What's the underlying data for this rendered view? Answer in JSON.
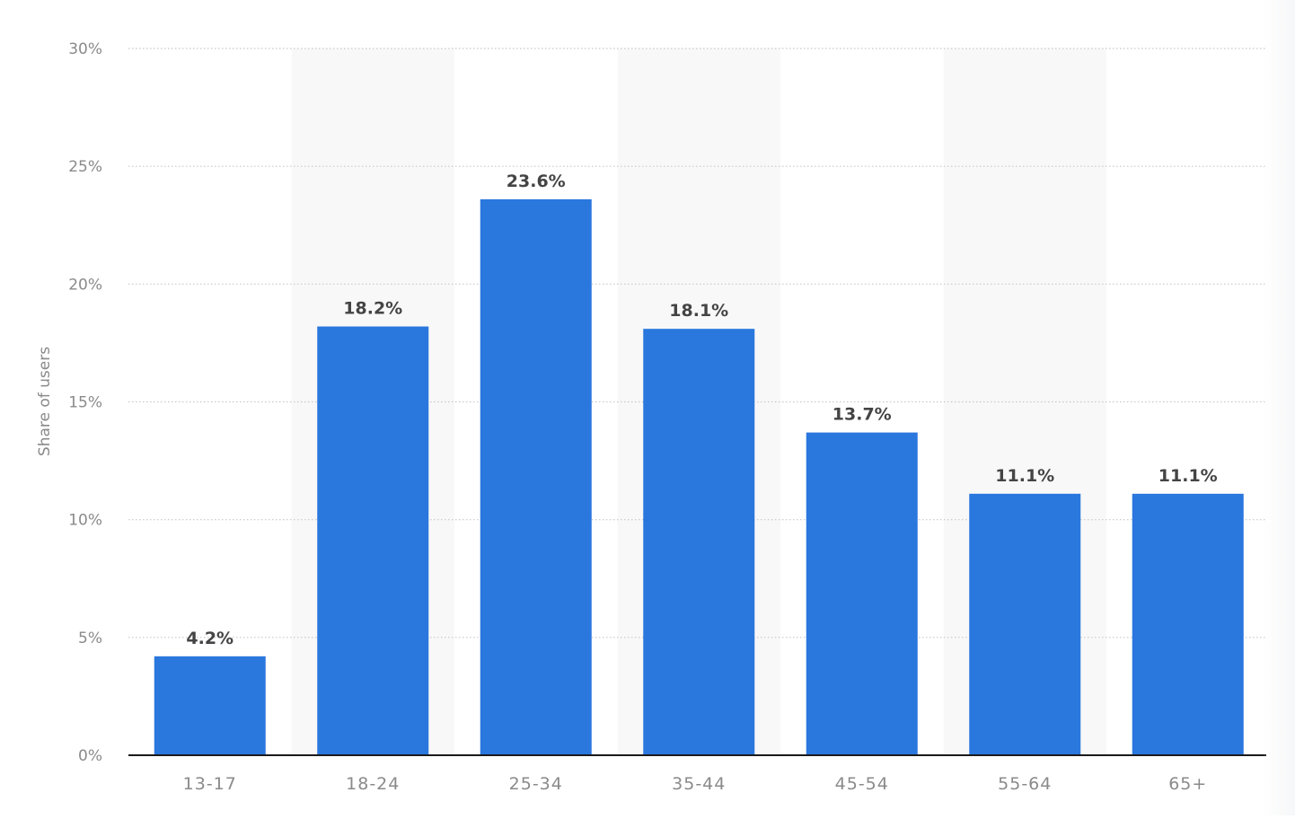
{
  "chart_data": {
    "type": "bar",
    "title": "",
    "xlabel": "",
    "ylabel": "Share of users",
    "categories": [
      "13-17",
      "18-24",
      "25-34",
      "35-44",
      "45-54",
      "55-64",
      "65+"
    ],
    "values": [
      4.2,
      18.2,
      23.6,
      18.1,
      13.7,
      11.1,
      11.1
    ],
    "value_labels": [
      "4.2%",
      "18.2%",
      "23.6%",
      "18.1%",
      "13.7%",
      "11.1%",
      "11.1%"
    ],
    "ylim": [
      0,
      30
    ],
    "yticks": [
      0,
      5,
      10,
      15,
      20,
      25,
      30
    ],
    "ytick_labels": [
      "0%",
      "5%",
      "10%",
      "15%",
      "20%",
      "25%",
      "30%"
    ],
    "grid": true,
    "grid_style": "dotted",
    "alternating_bands": true,
    "legend": "none"
  },
  "colors": {
    "bar": "#2a77dd",
    "band": "#f8f8f8",
    "grid": "#c8c8c8",
    "axis": "#1a1a1a",
    "tick_text": "#8a8a8a",
    "value_text": "#444444",
    "ylabel_text": "#8a8a8a"
  }
}
